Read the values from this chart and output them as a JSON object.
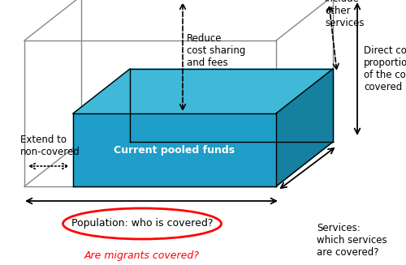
{
  "background_color": "#ffffff",
  "inner_box_label": "Current pooled funds",
  "inner_box_label_color": "#ffffff",
  "inner_box_color": "#1e9ec8",
  "inner_box_top_color": "#40b8d8",
  "inner_box_right_color": "#1580a0",
  "outer_box_color": "#888888",
  "annotations": {
    "reduce_cost": "Reduce\ncost sharing\nand fees",
    "include_other": "Include\nother\nservices",
    "extend_to": "Extend to\nnon-covered",
    "population": "Population: who is covered?",
    "services": "Services:\nwhich services\nare covered?",
    "direct_costs": "Direct costs:\nproportion\nof the costs\ncovered",
    "migrants": "Are migrants covered?"
  },
  "population_ellipse_color": "#ff0000",
  "migrants_text_color": "#ff0000",
  "text_color": "#000000",
  "figsize": [
    5.0,
    3.27
  ],
  "dpi": 100
}
